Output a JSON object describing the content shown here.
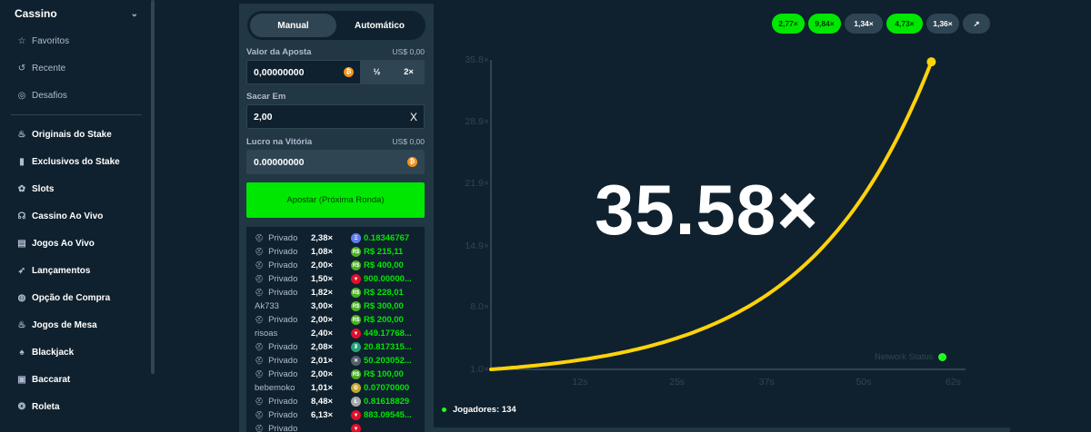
{
  "sidebar": {
    "title": "Cassino",
    "group1": [
      {
        "label": "Favoritos",
        "icon": "star-icon",
        "glyph": "☆"
      },
      {
        "label": "Recente",
        "icon": "history-icon",
        "glyph": "↺"
      },
      {
        "label": "Desafios",
        "icon": "target-icon",
        "glyph": "◎"
      }
    ],
    "group2": [
      {
        "label": "Originais do Stake",
        "icon": "flame-icon",
        "glyph": "♨"
      },
      {
        "label": "Exclusivos do Stake",
        "icon": "bookmark-icon",
        "glyph": "▮"
      },
      {
        "label": "Slots",
        "icon": "cherries-icon",
        "glyph": "✿"
      },
      {
        "label": "Cassino Ao Vivo",
        "icon": "headset-icon",
        "glyph": "☊"
      },
      {
        "label": "Jogos Ao Vivo",
        "icon": "chips-icon",
        "glyph": "▤"
      },
      {
        "label": "Lançamentos",
        "icon": "rocket-icon",
        "glyph": "➶"
      },
      {
        "label": "Opção de Compra",
        "icon": "globe-icon",
        "glyph": "◍"
      },
      {
        "label": "Jogos de Mesa",
        "icon": "table-flame-icon",
        "glyph": "♨"
      },
      {
        "label": "Blackjack",
        "icon": "spade-icon",
        "glyph": "♠"
      },
      {
        "label": "Baccarat",
        "icon": "cards-icon",
        "glyph": "▣"
      },
      {
        "label": "Roleta",
        "icon": "roulette-icon",
        "glyph": "❂"
      }
    ]
  },
  "panel": {
    "tabs": [
      {
        "label": "Manual",
        "active": true
      },
      {
        "label": "Automático",
        "active": false
      }
    ],
    "bet_label": "Valor da Aposta",
    "bet_usd": "US$ 0,00",
    "bet_value": "0,00000000",
    "half_label": "½",
    "double_label": "2×",
    "cashout_label": "Sacar Em",
    "cashout_value": "2,00",
    "cashout_clear": "X",
    "profit_label": "Lucro na Vitória",
    "profit_usd": "US$ 0,00",
    "profit_value": "0.00000000",
    "bet_button": "Apostar (Próxima Ronda)"
  },
  "bets": [
    {
      "user": "Privado",
      "hidden": true,
      "mult": "2,38×",
      "coin": "eth",
      "coin_color": "#627eea",
      "amount": "0.18346767"
    },
    {
      "user": "Privado",
      "hidden": true,
      "mult": "1,08×",
      "coin": "brl",
      "coin_color": "#4caf24",
      "amount": "R$ 215,11"
    },
    {
      "user": "Privado",
      "hidden": true,
      "mult": "2,00×",
      "coin": "brl",
      "coin_color": "#4caf24",
      "amount": "R$ 400,00"
    },
    {
      "user": "Privado",
      "hidden": true,
      "mult": "1,50×",
      "coin": "trx",
      "coin_color": "#e0102b",
      "amount": "900.00000..."
    },
    {
      "user": "Privado",
      "hidden": true,
      "mult": "1,82×",
      "coin": "brl",
      "coin_color": "#4caf24",
      "amount": "R$ 228,01"
    },
    {
      "user": "Ak733",
      "hidden": false,
      "mult": "3,00×",
      "coin": "brl",
      "coin_color": "#4caf24",
      "amount": "R$ 300,00"
    },
    {
      "user": "Privado",
      "hidden": true,
      "mult": "2,00×",
      "coin": "brl",
      "coin_color": "#4caf24",
      "amount": "R$ 200,00"
    },
    {
      "user": "risoas",
      "hidden": false,
      "mult": "2,40×",
      "coin": "trx",
      "coin_color": "#e0102b",
      "amount": "449.17768..."
    },
    {
      "user": "Privado",
      "hidden": true,
      "mult": "2,08×",
      "coin": "usdt",
      "coin_color": "#26a17b",
      "amount": "20.817315..."
    },
    {
      "user": "Privado",
      "hidden": true,
      "mult": "2,01×",
      "coin": "xrp",
      "coin_color": "#555f66",
      "amount": "50.203052..."
    },
    {
      "user": "Privado",
      "hidden": true,
      "mult": "2,00×",
      "coin": "brl",
      "coin_color": "#4caf24",
      "amount": "R$ 100,00"
    },
    {
      "user": "bebemoko",
      "hidden": false,
      "mult": "1,01×",
      "coin": "doge",
      "coin_color": "#c2a633",
      "amount": "0.07070000"
    },
    {
      "user": "Privado",
      "hidden": true,
      "mult": "8,48×",
      "coin": "ltc",
      "coin_color": "#a6a9aa",
      "amount": "0.81618829"
    },
    {
      "user": "Privado",
      "hidden": true,
      "mult": "6,13×",
      "coin": "trx",
      "coin_color": "#e0102b",
      "amount": "883.09545..."
    },
    {
      "user": "Privado",
      "hidden": true,
      "mult": "",
      "coin": "trx",
      "coin_color": "#e0102b",
      "amount": ""
    }
  ],
  "history": [
    {
      "label": "2,77×",
      "win": true
    },
    {
      "label": "9,84×",
      "win": true
    },
    {
      "label": "1,34×",
      "win": false
    },
    {
      "label": "4,73×",
      "win": true
    },
    {
      "label": "1,36×",
      "win": false
    }
  ],
  "game": {
    "multiplier": "35.58×",
    "network_status": "Network Status",
    "players": "Jogadores: 134",
    "y_ticks": [
      "35.8×",
      "28.9×",
      "21.9×",
      "14.9×",
      "8.0×",
      "1.0×"
    ],
    "x_ticks": [
      "12s",
      "25s",
      "37s",
      "50s",
      "62s"
    ]
  },
  "chart_data": {
    "type": "line",
    "title": "",
    "xlabel": "",
    "ylabel": "",
    "x_unit": "s",
    "ylim": [
      1.0,
      35.8
    ],
    "xlim": [
      0,
      62
    ],
    "yticks": [
      1.0,
      8.0,
      14.9,
      21.9,
      28.9,
      35.8
    ],
    "xticks": [
      12,
      25,
      37,
      50,
      62
    ],
    "series": [
      {
        "x": [
          0,
          12,
          25,
          37,
          50,
          59
        ],
        "y": [
          1.0,
          1.8,
          3.6,
          7.8,
          18.5,
          35.58
        ]
      }
    ],
    "colors": {
      "line": "#fed30a",
      "axis": "#2f4553"
    }
  },
  "colors": {
    "accent": "#00e701",
    "panel": "#213743",
    "bg": "#0f212e"
  }
}
